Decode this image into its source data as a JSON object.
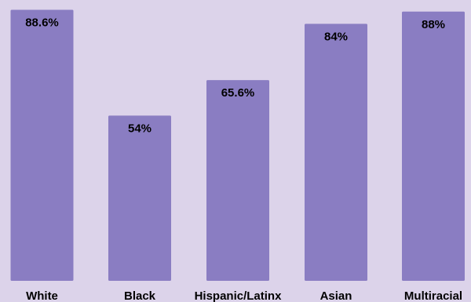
{
  "chart_data": {
    "type": "bar",
    "categories": [
      "White",
      "Black",
      "Hispanic/Latinx",
      "Asian",
      "Multiracial"
    ],
    "values": [
      88.6,
      54,
      65.6,
      84,
      88
    ],
    "value_labels": [
      "88.6%",
      "54%",
      "65.6%",
      "84%",
      "88%"
    ],
    "ylim": [
      0,
      90
    ],
    "title": "",
    "xlabel": "",
    "ylabel": "",
    "grid": false,
    "legend": "none"
  },
  "style": {
    "background": "#dcd3ea",
    "bar_color": "#8a7dc2",
    "text_color": "#000000"
  }
}
